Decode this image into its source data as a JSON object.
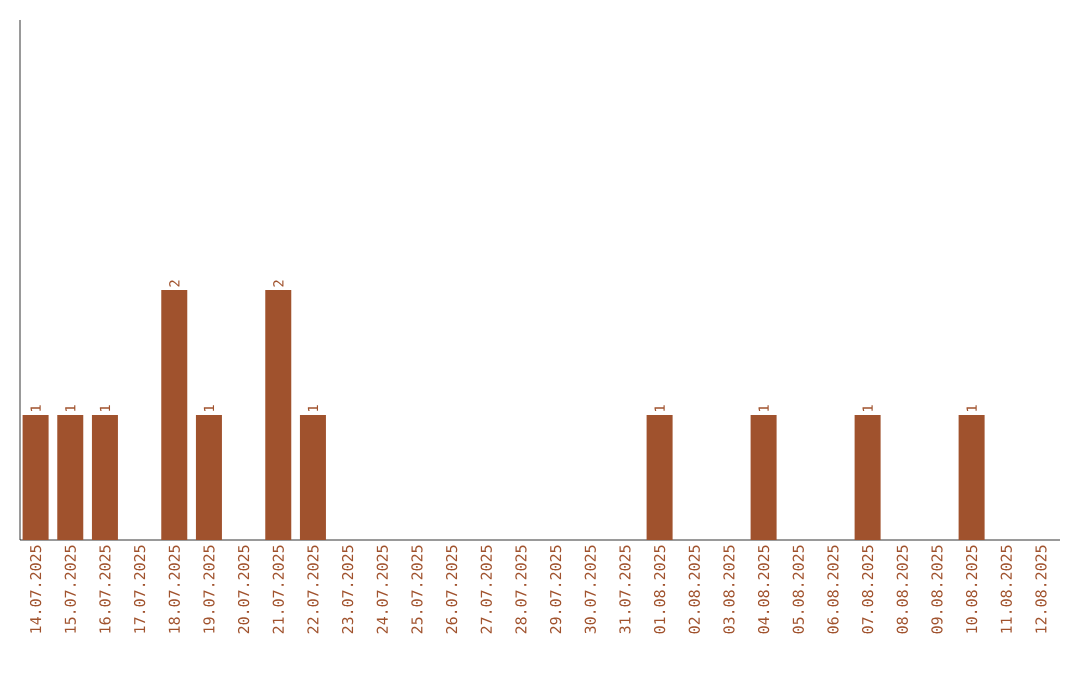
{
  "chart_data": {
    "type": "bar",
    "categories": [
      "14.07.2025",
      "15.07.2025",
      "16.07.2025",
      "17.07.2025",
      "18.07.2025",
      "19.07.2025",
      "20.07.2025",
      "21.07.2025",
      "22.07.2025",
      "23.07.2025",
      "24.07.2025",
      "25.07.2025",
      "26.07.2025",
      "27.07.2025",
      "28.07.2025",
      "29.07.2025",
      "30.07.2025",
      "31.07.2025",
      "01.08.2025",
      "02.08.2025",
      "03.08.2025",
      "04.08.2025",
      "05.08.2025",
      "06.08.2025",
      "07.08.2025",
      "08.08.2025",
      "09.08.2025",
      "10.08.2025",
      "11.08.2025",
      "12.08.2025"
    ],
    "values": [
      1,
      1,
      1,
      0,
      2,
      1,
      0,
      2,
      1,
      0,
      0,
      0,
      0,
      0,
      0,
      0,
      0,
      0,
      1,
      0,
      0,
      1,
      0,
      0,
      1,
      0,
      0,
      1,
      0,
      0
    ],
    "value_labels": [
      "1",
      "1",
      "1",
      null,
      "2",
      "1",
      null,
      "2",
      "1",
      null,
      null,
      null,
      null,
      null,
      null,
      null,
      null,
      null,
      "1",
      null,
      null,
      "1",
      null,
      null,
      "1",
      null,
      null,
      "1",
      null,
      null
    ],
    "color": "#a0522d"
  }
}
